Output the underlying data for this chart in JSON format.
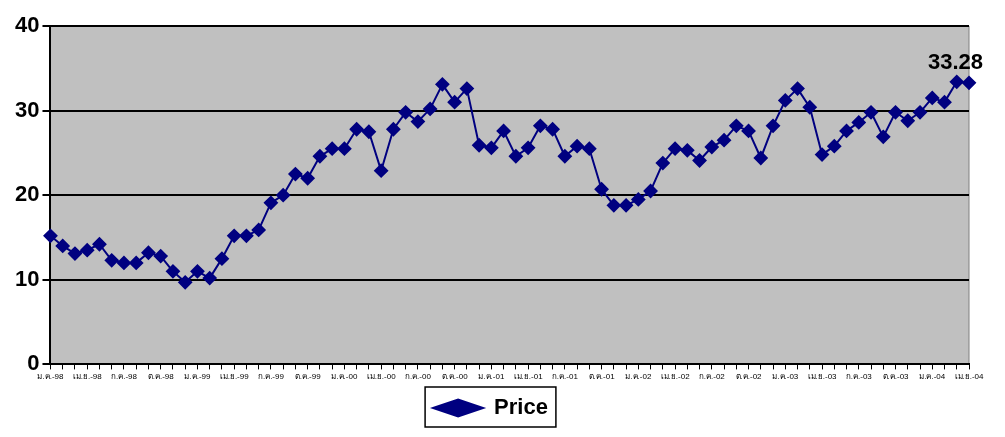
{
  "chart_data": {
    "type": "line",
    "categories": [
      "ม.ค.-98",
      null,
      null,
      "เม.ย.-98",
      null,
      null,
      "ก.ค.-98",
      null,
      null,
      "ต.ค.-98",
      null,
      null,
      "ม.ค.-99",
      null,
      null,
      "เม.ย.-99",
      null,
      null,
      "ก.ค.-99",
      null,
      null,
      "ต.ค.-99",
      null,
      null,
      "ม.ค.-00",
      null,
      null,
      "เม.ย.-00",
      null,
      null,
      "ก.ค.-00",
      null,
      null,
      "ต.ค.-00",
      null,
      null,
      "ม.ค.-01",
      null,
      null,
      "เม.ย.-01",
      null,
      null,
      "ก.ค.-01",
      null,
      null,
      "ต.ค.-01",
      null,
      null,
      "ม.ค.-02",
      null,
      null,
      "เม.ย.-02",
      null,
      null,
      "ก.ค.-02",
      null,
      null,
      "ต.ค.-02",
      null,
      null,
      "ม.ค.-03",
      null,
      null,
      "เม.ย.-03",
      null,
      null,
      "ก.ค.-03",
      null,
      null,
      "ต.ค.-03",
      null,
      null,
      "ม.ค.-04",
      null,
      null,
      "เม.ย.-04"
    ],
    "series": [
      {
        "name": "Price",
        "color": "#000080",
        "values": [
          15.2,
          14.0,
          13.1,
          13.5,
          14.2,
          12.3,
          12.0,
          12.0,
          13.2,
          12.8,
          11.0,
          9.7,
          11.0,
          10.2,
          12.5,
          15.2,
          15.2,
          15.9,
          19.1,
          20.0,
          22.5,
          22.0,
          24.6,
          25.5,
          25.5,
          27.8,
          27.5,
          22.9,
          27.8,
          29.8,
          28.7,
          30.2,
          33.1,
          31.0,
          32.6,
          25.9,
          25.6,
          27.6,
          24.6,
          25.6,
          28.2,
          27.8,
          24.6,
          25.8,
          25.5,
          20.7,
          18.8,
          18.8,
          19.5,
          20.5,
          23.8,
          25.5,
          25.3,
          24.1,
          25.7,
          26.5,
          28.2,
          27.6,
          24.4,
          28.2,
          31.2,
          32.6,
          30.4,
          24.8,
          25.8,
          27.6,
          28.6,
          29.8,
          26.9,
          29.8,
          28.8,
          29.8,
          31.5,
          31.0,
          33.4,
          33.28
        ],
        "value_labels": [
          null,
          null,
          null,
          null,
          null,
          null,
          null,
          null,
          null,
          null,
          null,
          null,
          null,
          null,
          null,
          null,
          null,
          null,
          null,
          null,
          null,
          null,
          null,
          null,
          null,
          null,
          null,
          null,
          null,
          null,
          null,
          null,
          null,
          null,
          null,
          null,
          null,
          null,
          null,
          null,
          null,
          null,
          null,
          null,
          null,
          null,
          null,
          null,
          null,
          null,
          null,
          null,
          null,
          null,
          null,
          null,
          null,
          null,
          null,
          null,
          null,
          null,
          null,
          null,
          null,
          null,
          null,
          null,
          null,
          null,
          null,
          null,
          null,
          null,
          null,
          "33.28"
        ]
      }
    ],
    "ylim": [
      0,
      40
    ],
    "yticks": [
      0,
      10,
      20,
      30,
      40
    ],
    "grid": "y",
    "legend": "bottom",
    "marker": "diamond",
    "line_style": "solid"
  }
}
